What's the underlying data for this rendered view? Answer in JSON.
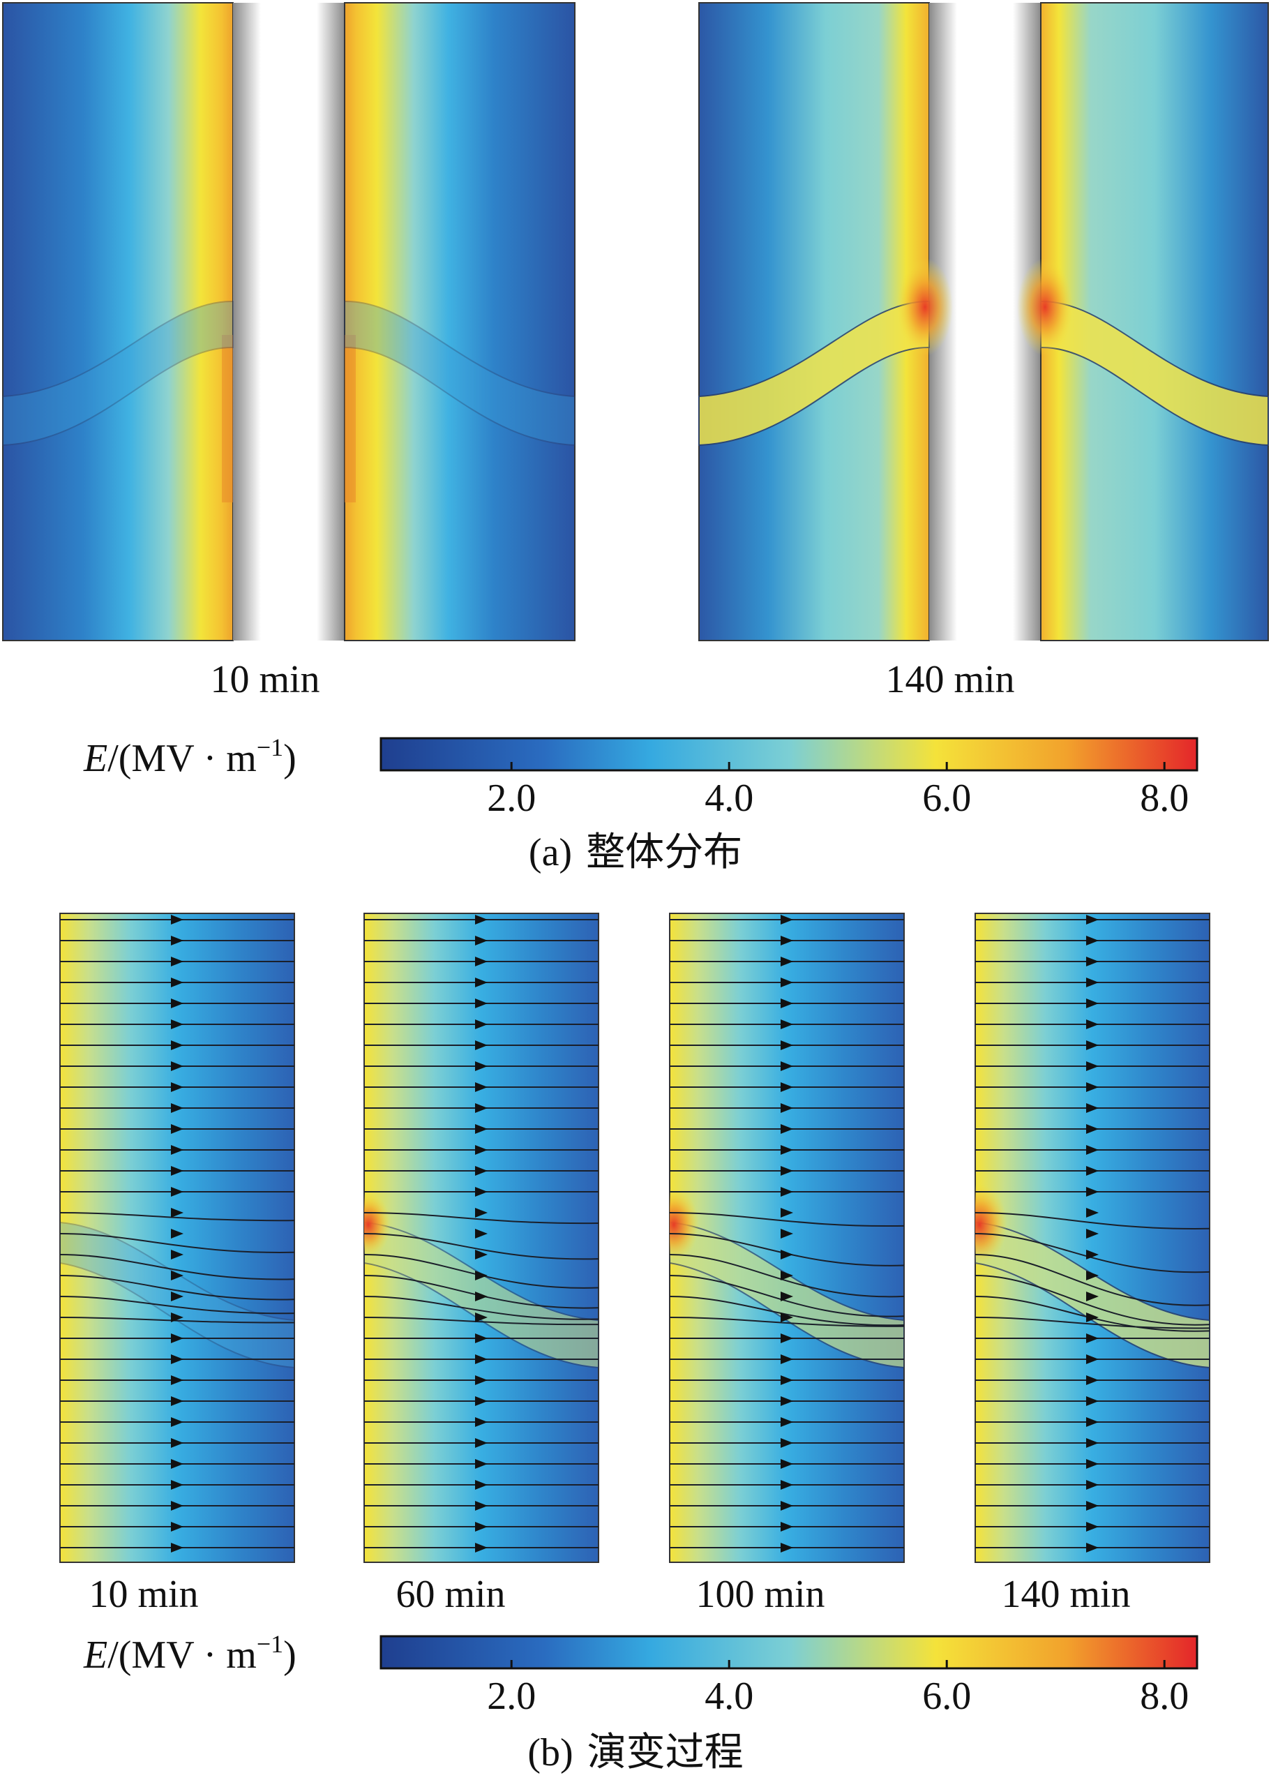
{
  "figure": {
    "panel_a": {
      "caption_tag": "(a)",
      "caption_text": "整体分布",
      "time_labels": [
        "10 min",
        "140 min"
      ]
    },
    "panel_b": {
      "caption_tag": "(b)",
      "caption_text": "演变过程",
      "time_labels": [
        "10 min",
        "60 min",
        "100 min",
        "140 min"
      ]
    },
    "colorbar": {
      "label_symbol": "E",
      "label_units": "/(MV · m",
      "label_exp": "−1",
      "label_close": ")",
      "ticks": [
        "2.0",
        "4.0",
        "6.0",
        "8.0"
      ]
    }
  },
  "chart_data": {
    "type": "heatmap",
    "quantity": "E",
    "unit": "MV·m−1",
    "colorbar_range": [
      0.8,
      8.3
    ],
    "colorbar_ticks": [
      2.0,
      4.0,
      6.0,
      8.0
    ],
    "colormap": [
      "#1f3f8f",
      "#2a6cc0",
      "#35a9e0",
      "#7ccfd4",
      "#f4e23a",
      "#f2a22c",
      "#e4262a"
    ],
    "panels": [
      {
        "panel": "a",
        "time_min": 10,
        "max_field_approx": 7.2,
        "region": "overall distribution"
      },
      {
        "panel": "a",
        "time_min": 140,
        "max_field_approx": 8.2,
        "region": "overall distribution"
      },
      {
        "panel": "b",
        "time_min": 10,
        "max_field_approx": 6.8,
        "region": "evolution, streamlines"
      },
      {
        "panel": "b",
        "time_min": 60,
        "max_field_approx": 7.4,
        "region": "evolution, streamlines"
      },
      {
        "panel": "b",
        "time_min": 100,
        "max_field_approx": 7.8,
        "region": "evolution, streamlines"
      },
      {
        "panel": "b",
        "time_min": 140,
        "max_field_approx": 8.0,
        "region": "evolution, streamlines"
      }
    ]
  }
}
